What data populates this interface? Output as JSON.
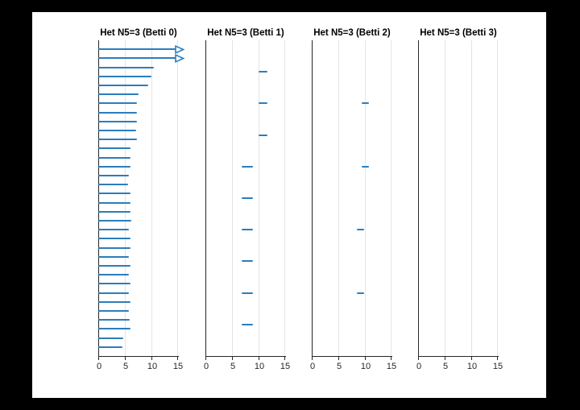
{
  "meta": {
    "background_color": "#000000",
    "figure_color": "#ffffff",
    "bar_color": "#2b7dbd",
    "axis_color": "#262626",
    "grid_color": "#e4e4e4",
    "title_color": "#000000"
  },
  "chart_data": [
    {
      "type": "bar",
      "kind": "persistence-barcode",
      "title": "Het N5=3 (Betti 0)",
      "xlim": [
        0,
        15
      ],
      "xticks": [
        "0",
        "5",
        "10",
        "15"
      ],
      "grid": true,
      "legend": "none",
      "bars": [
        {
          "b": 0,
          "d": null,
          "inf": true
        },
        {
          "b": 0,
          "d": null,
          "inf": true
        },
        {
          "b": 0,
          "d": 10.4
        },
        {
          "b": 0,
          "d": 10.0
        },
        {
          "b": 0,
          "d": 9.4
        },
        {
          "b": 0,
          "d": 7.5
        },
        {
          "b": 0,
          "d": 7.2
        },
        {
          "b": 0,
          "d": 7.2
        },
        {
          "b": 0,
          "d": 7.2
        },
        {
          "b": 0,
          "d": 7.1
        },
        {
          "b": 0,
          "d": 7.2
        },
        {
          "b": 0,
          "d": 6.1
        },
        {
          "b": 0,
          "d": 6.0
        },
        {
          "b": 0,
          "d": 6.0
        },
        {
          "b": 0,
          "d": 5.7
        },
        {
          "b": 0,
          "d": 5.6
        },
        {
          "b": 0,
          "d": 6.0
        },
        {
          "b": 0,
          "d": 6.0
        },
        {
          "b": 0,
          "d": 6.0
        },
        {
          "b": 0,
          "d": 6.2
        },
        {
          "b": 0,
          "d": 5.8
        },
        {
          "b": 0,
          "d": 6.0
        },
        {
          "b": 0,
          "d": 6.0
        },
        {
          "b": 0,
          "d": 5.7
        },
        {
          "b": 0,
          "d": 6.0
        },
        {
          "b": 0,
          "d": 5.8
        },
        {
          "b": 0,
          "d": 6.0
        },
        {
          "b": 0,
          "d": 5.8
        },
        {
          "b": 0,
          "d": 6.0
        },
        {
          "b": 0,
          "d": 5.8
        },
        {
          "b": 0,
          "d": 5.9
        },
        {
          "b": 0,
          "d": 6.1
        },
        {
          "b": 0,
          "d": 4.7
        },
        {
          "b": 0,
          "d": 4.6
        }
      ]
    },
    {
      "type": "bar",
      "kind": "persistence-barcode",
      "title": "Het N5=3 (Betti 1)",
      "xlim": [
        0,
        15
      ],
      "xticks": [
        "0",
        "5",
        "10",
        "15"
      ],
      "grid": true,
      "legend": "none",
      "bars": [
        {
          "b": 10.0,
          "d": 11.6
        },
        {
          "b": 10.0,
          "d": 11.6
        },
        {
          "b": 10.0,
          "d": 11.6
        },
        {
          "b": 6.8,
          "d": 9.0
        },
        {
          "b": 6.8,
          "d": 9.0
        },
        {
          "b": 6.8,
          "d": 9.0
        },
        {
          "b": 6.8,
          "d": 9.0
        },
        {
          "b": 6.8,
          "d": 9.0
        },
        {
          "b": 6.8,
          "d": 9.0
        }
      ]
    },
    {
      "type": "bar",
      "kind": "persistence-barcode",
      "title": "Het N5=3 (Betti 2)",
      "xlim": [
        0,
        15
      ],
      "xticks": [
        "0",
        "5",
        "10",
        "15"
      ],
      "grid": true,
      "legend": "none",
      "bars": [
        {
          "b": 9.4,
          "d": 10.7
        },
        {
          "b": 9.4,
          "d": 10.7
        },
        {
          "b": 8.5,
          "d": 9.9
        },
        {
          "b": 8.5,
          "d": 9.9
        }
      ]
    },
    {
      "type": "bar",
      "kind": "persistence-barcode",
      "title": "Het N5=3 (Betti 3)",
      "xlim": [
        0,
        15
      ],
      "xticks": [
        "0",
        "5",
        "10",
        "15"
      ],
      "grid": true,
      "legend": "none",
      "bars": []
    }
  ]
}
